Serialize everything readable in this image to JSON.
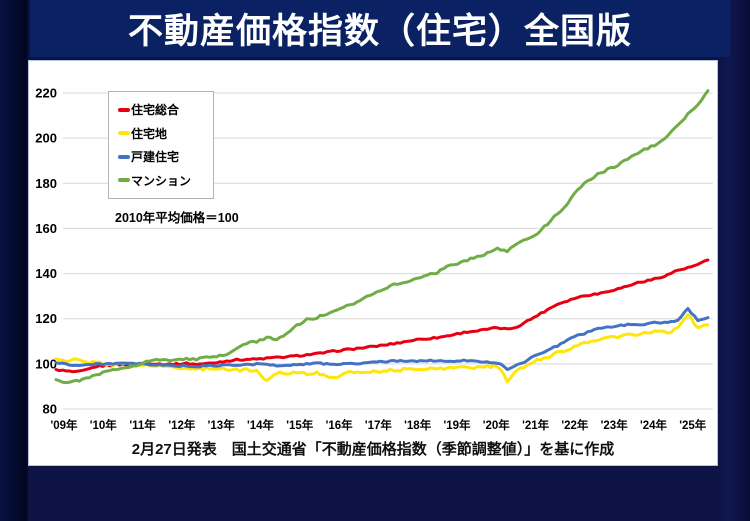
{
  "header": {
    "title": "不動産価格指数（住宅）全国版"
  },
  "footer": {
    "caption": "2月27日発表　国土交通省「不動産価格指数（季節調整値）」を基に作成"
  },
  "chart_data": {
    "type": "line",
    "title": "不動産価格指数（住宅）全国版",
    "annotation": "2010年平均価格＝100",
    "x_tick_labels": [
      "'09年",
      "'10年",
      "'11年",
      "'12年",
      "'13年",
      "'14年",
      "'15年",
      "'16年",
      "'17年",
      "'18年",
      "'19年",
      "'20年",
      "'21年",
      "'22年",
      "'23年",
      "'24年",
      "'25年"
    ],
    "y_ticks": [
      80,
      100,
      120,
      140,
      160,
      180,
      200,
      220
    ],
    "ylim": [
      80,
      220
    ],
    "x_start_year": 2009,
    "points_per_year": 4,
    "grid": "horizontal",
    "grid_color": "#d9d9d9",
    "legend_position": "top-left",
    "series": [
      {
        "name": "住宅総合",
        "color": "#e60012",
        "jitter": 0.7,
        "values": [
          97.5,
          96.8,
          96.3,
          97.2,
          98.8,
          99.3,
          99.6,
          99.8,
          100,
          100.3,
          100,
          99.8,
          99.9,
          100.2,
          99.8,
          100.1,
          100.6,
          101.3,
          101.8,
          102,
          102.1,
          102.5,
          102.8,
          103.1,
          103.5,
          104,
          104.5,
          105.1,
          105.8,
          106.3,
          106.8,
          107.3,
          107.9,
          108.5,
          109.2,
          110,
          110.8,
          111.2,
          111.6,
          112.4,
          113.3,
          114.2,
          114.6,
          115.3,
          116,
          115.3,
          116.5,
          119,
          121.5,
          124,
          126.5,
          128,
          129.5,
          130.5,
          131,
          132.2,
          133.2,
          134.5,
          136,
          136.8,
          138,
          139.5,
          141.5,
          142.5,
          144,
          146
        ]
      },
      {
        "name": "住宅地",
        "color": "#ffe60a",
        "jitter": 1.2,
        "values": [
          102.3,
          100.8,
          102,
          100.5,
          100.8,
          100,
          99.7,
          100.2,
          100,
          99.4,
          99,
          98.8,
          98.5,
          98,
          97.6,
          97.9,
          98.2,
          97.6,
          97.2,
          97.5,
          96.8,
          92.5,
          96.2,
          95.8,
          96.3,
          95.8,
          96,
          94.2,
          94.3,
          96,
          96.3,
          96.5,
          96.8,
          97,
          97.3,
          97.5,
          97.8,
          98,
          97.7,
          98.2,
          98.4,
          98.7,
          98.3,
          98.8,
          99,
          92.5,
          97,
          99.5,
          101.5,
          103,
          105,
          106.5,
          108,
          109.5,
          110.8,
          111.5,
          112,
          113,
          112.5,
          113.8,
          114.3,
          114,
          115.5,
          122,
          116,
          117.2
        ]
      },
      {
        "name": "戸建住宅",
        "color": "#4472c4",
        "jitter": 0.7,
        "values": [
          100.5,
          100,
          99.3,
          99.6,
          99.8,
          100,
          100.2,
          100,
          100,
          99.8,
          99.5,
          99.3,
          99.2,
          99,
          98.8,
          99,
          99.2,
          99.5,
          99.3,
          99.6,
          100,
          99.6,
          99.3,
          99.5,
          99.7,
          100,
          100.2,
          100,
          99.8,
          100.3,
          100,
          100.4,
          100.8,
          101,
          101.3,
          101,
          101.3,
          101.5,
          101.2,
          101,
          101.3,
          101.5,
          101,
          100.8,
          100.5,
          97.8,
          99.5,
          101.5,
          104.3,
          106,
          108,
          110.5,
          112.5,
          114,
          115.5,
          116.3,
          116.8,
          117.3,
          117,
          118,
          118.5,
          118.2,
          119,
          124.5,
          119.5,
          120.5
        ]
      },
      {
        "name": "マンション",
        "color": "#70ad47",
        "jitter": 0.9,
        "values": [
          93,
          91.8,
          92.3,
          93.5,
          95,
          96.5,
          97.5,
          98.5,
          99.5,
          101,
          101.8,
          101.5,
          101.8,
          102.3,
          102,
          102.8,
          103.2,
          104,
          107,
          109,
          110,
          111.5,
          111,
          113.5,
          117,
          119.5,
          120.5,
          122,
          123.5,
          125.5,
          127.5,
          130,
          132,
          134,
          135.5,
          136,
          138,
          139.5,
          140.5,
          143,
          144.5,
          146,
          147.5,
          149,
          151,
          150,
          153,
          155.5,
          158,
          162,
          166.5,
          171,
          177,
          181,
          184,
          186,
          188,
          191,
          193.5,
          195.5,
          197.5,
          201,
          205.5,
          210.5,
          215,
          221
        ]
      }
    ]
  }
}
